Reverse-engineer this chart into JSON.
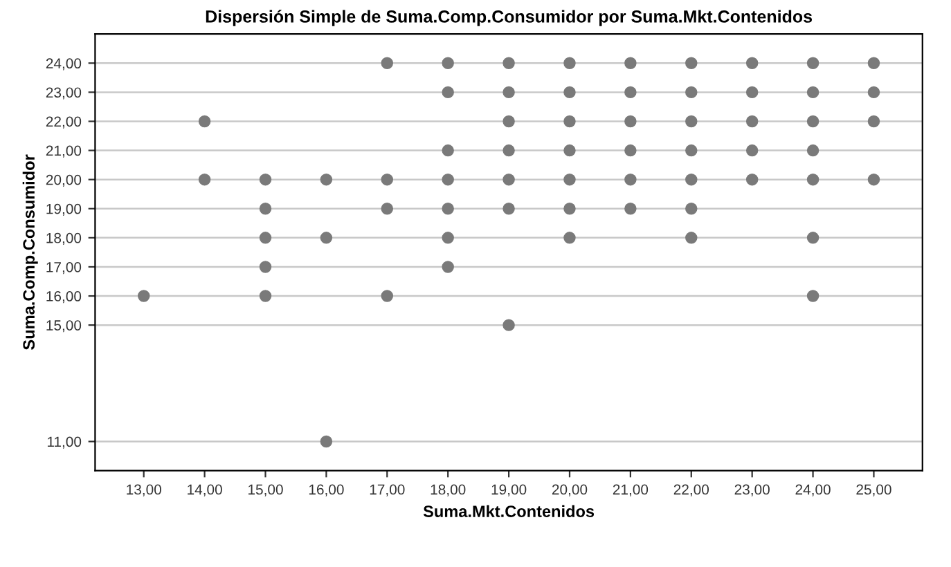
{
  "chart_data": {
    "type": "scatter",
    "title": "Dispersión Simple de Suma.Comp.Consumidor por Suma.Mkt.Contenidos",
    "xlabel": "Suma.Mkt.Contenidos",
    "ylabel": "Suma.Comp.Consumidor",
    "series": [
      {
        "color": "#7a7a7a",
        "x": [
          13,
          14,
          14,
          15,
          15,
          15,
          15,
          15,
          16,
          16,
          16,
          17,
          17,
          17,
          17,
          18,
          18,
          18,
          18,
          18,
          18,
          18,
          19,
          19,
          19,
          19,
          19,
          19,
          19,
          20,
          20,
          20,
          20,
          20,
          20,
          20,
          21,
          21,
          21,
          21,
          21,
          21,
          22,
          22,
          22,
          22,
          22,
          22,
          22,
          23,
          23,
          23,
          23,
          23,
          24,
          24,
          24,
          24,
          24,
          24,
          24,
          25,
          25,
          25,
          25
        ],
        "values": [
          16,
          22,
          20,
          20,
          19,
          18,
          17,
          16,
          20,
          18,
          11,
          24,
          20,
          19,
          16,
          24,
          23,
          21,
          20,
          19,
          18,
          17,
          24,
          23,
          22,
          21,
          20,
          19,
          15,
          24,
          23,
          22,
          21,
          20,
          19,
          18,
          24,
          23,
          22,
          21,
          20,
          19,
          24,
          23,
          22,
          21,
          20,
          19,
          18,
          24,
          23,
          22,
          21,
          20,
          24,
          23,
          22,
          21,
          20,
          18,
          16,
          24,
          23,
          22,
          20
        ]
      }
    ],
    "marker": "circle",
    "grid": "y",
    "xlim": [
      12.2,
      25.8
    ],
    "ylim": [
      10,
      25
    ],
    "xticks": [
      {
        "value": 13,
        "label": "13,00"
      },
      {
        "value": 14,
        "label": "14,00"
      },
      {
        "value": 15,
        "label": "15,00"
      },
      {
        "value": 16,
        "label": "16,00"
      },
      {
        "value": 17,
        "label": "17,00"
      },
      {
        "value": 18,
        "label": "18,00"
      },
      {
        "value": 19,
        "label": "19,00"
      },
      {
        "value": 20,
        "label": "20,00"
      },
      {
        "value": 21,
        "label": "21,00"
      },
      {
        "value": 22,
        "label": "22,00"
      },
      {
        "value": 23,
        "label": "23,00"
      },
      {
        "value": 24,
        "label": "24,00"
      },
      {
        "value": 25,
        "label": "25,00"
      }
    ],
    "yticks": [
      {
        "value": 11,
        "label": "11,00"
      },
      {
        "value": 15,
        "label": "15,00"
      },
      {
        "value": 16,
        "label": "16,00"
      },
      {
        "value": 17,
        "label": "17,00"
      },
      {
        "value": 18,
        "label": "18,00"
      },
      {
        "value": 19,
        "label": "19,00"
      },
      {
        "value": 20,
        "label": "20,00"
      },
      {
        "value": 21,
        "label": "21,00"
      },
      {
        "value": 22,
        "label": "22,00"
      },
      {
        "value": 23,
        "label": "23,00"
      },
      {
        "value": 24,
        "label": "24,00"
      }
    ]
  }
}
